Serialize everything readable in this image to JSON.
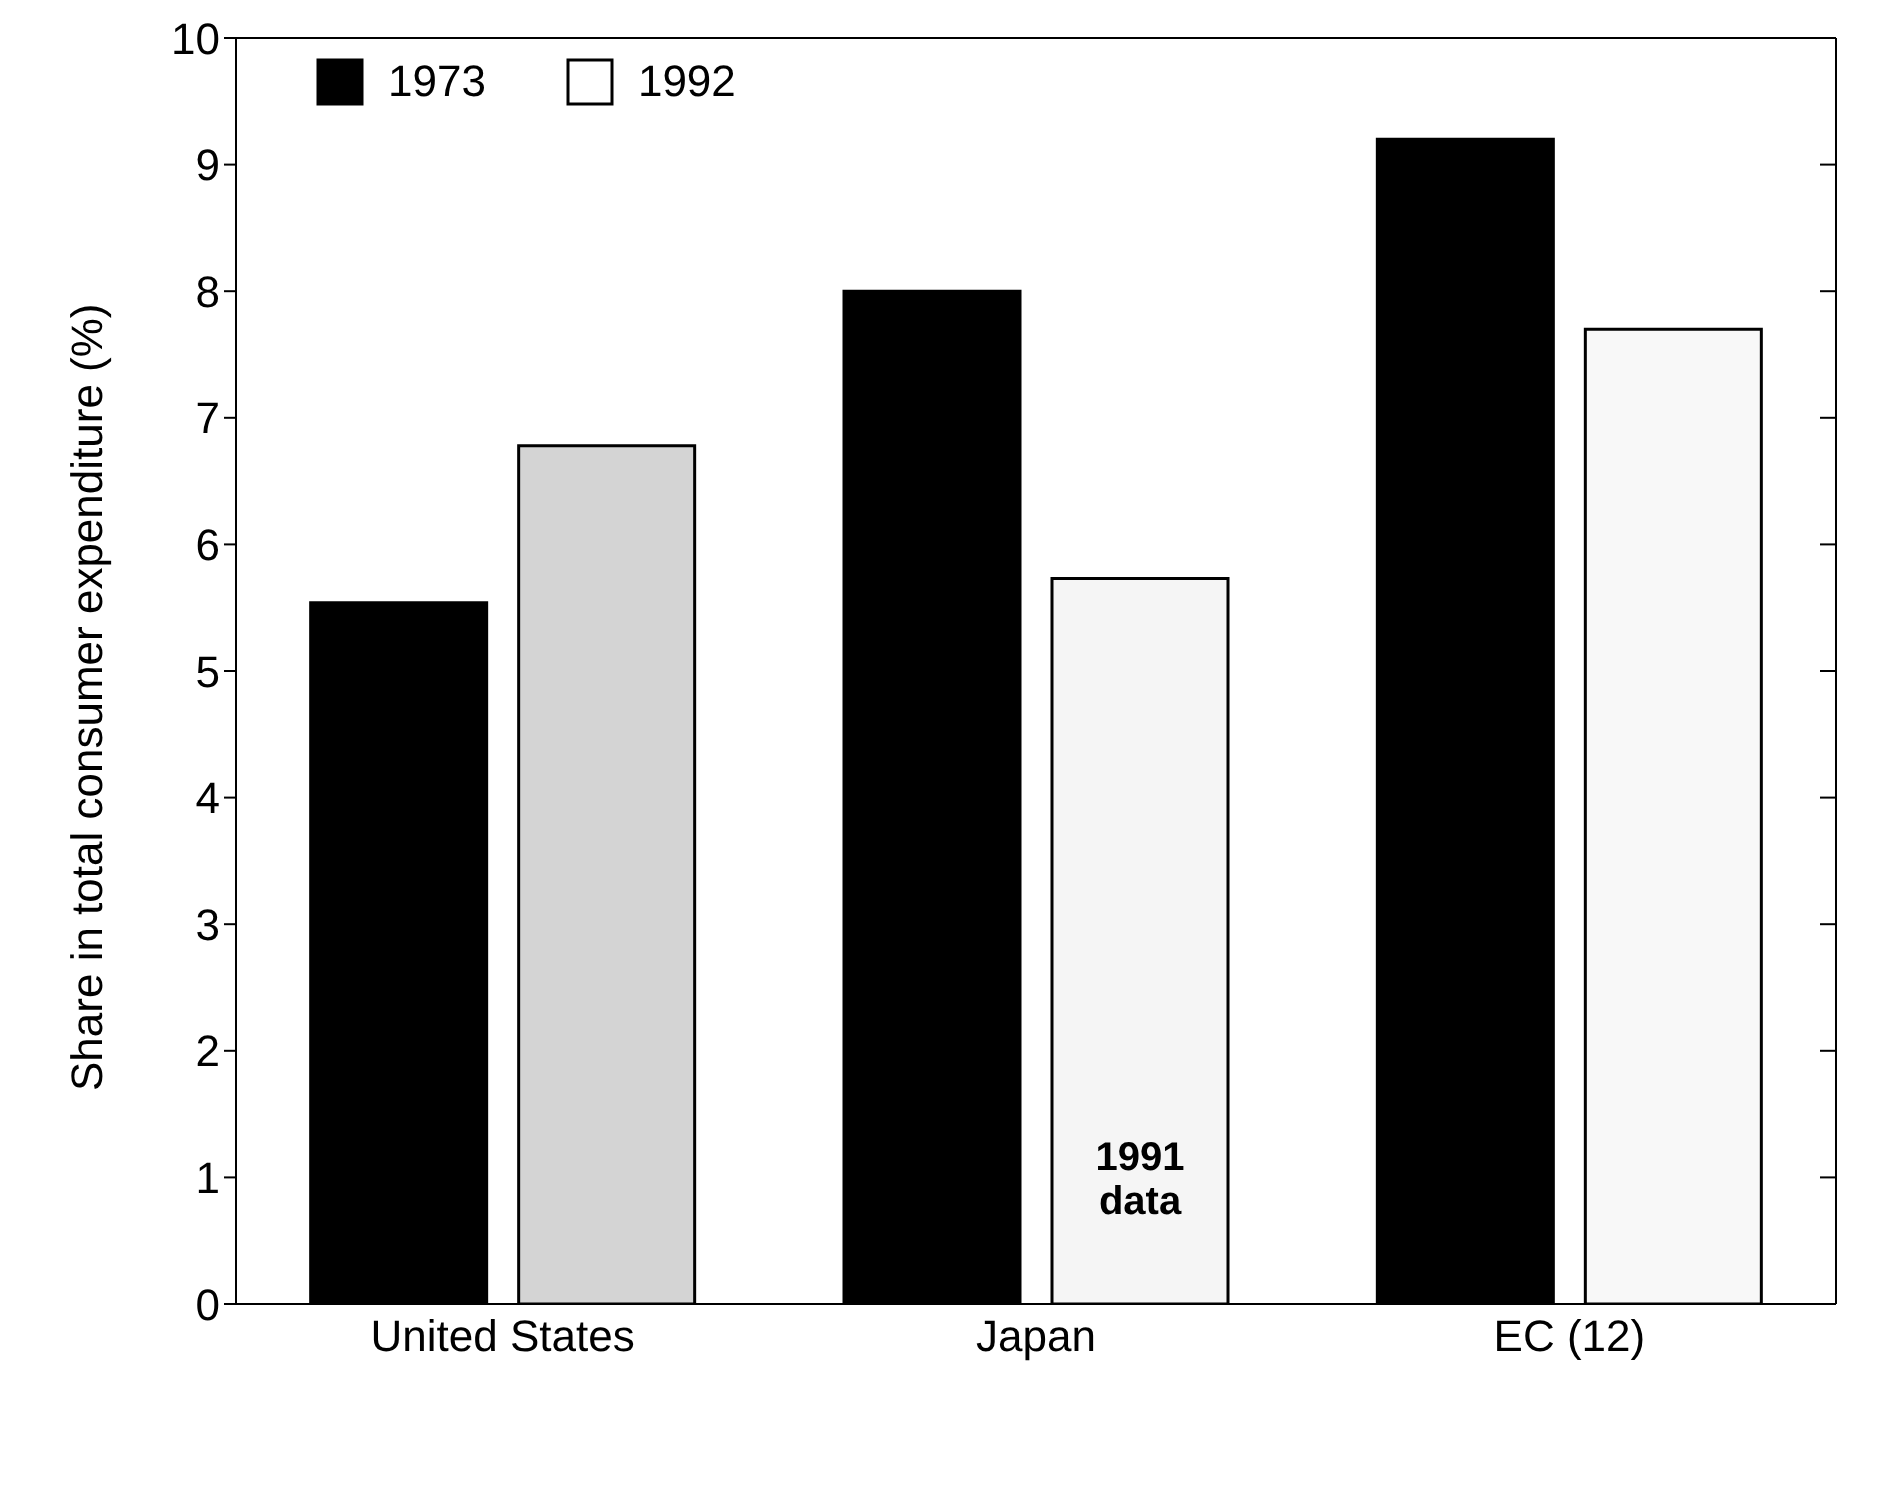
{
  "chart_data": {
    "type": "bar",
    "ylabel": "Share in total consumer expenditure (%)",
    "categories": [
      "United States",
      "Japan",
      "EC (12)"
    ],
    "series": [
      {
        "name": "1973",
        "color": "#000000",
        "values": [
          5.54,
          8.0,
          9.2
        ]
      },
      {
        "name": "1992",
        "color": "#ffffff",
        "colors": [
          "#d4d4d4",
          "#f5f5f5",
          "#f8f8f8"
        ],
        "values": [
          6.78,
          5.73,
          7.7
        ]
      }
    ],
    "ylim": [
      0,
      10
    ],
    "yticks": [
      0,
      1,
      2,
      3,
      4,
      5,
      6,
      7,
      8,
      9,
      10
    ],
    "grid": false,
    "legend": "top left",
    "annotations": [
      "1991 data"
    ]
  }
}
